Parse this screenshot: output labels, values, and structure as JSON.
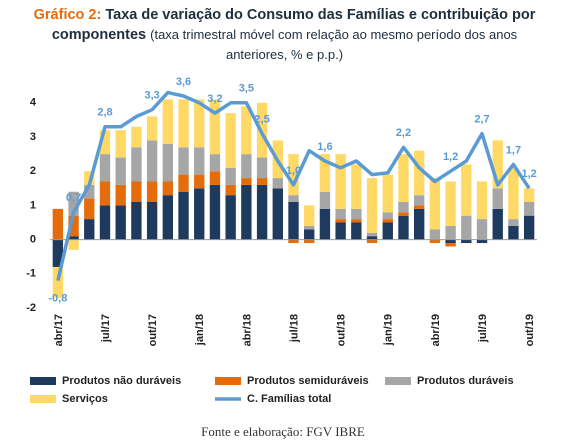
{
  "chart_data": {
    "type": "stacked_bar_line",
    "title_prefix": "Gráfico 2:",
    "title": "Taxa de variação do Consumo das Famílias e contribuição por componentes",
    "subtitle": "(taxa trimestral móvel com relação ao mesmo período dos anos anteriores, % e p.p.)",
    "source": "Fonte e elaboração: FGV IBRE",
    "categories": [
      "abr/17",
      null,
      null,
      "jul/17",
      null,
      null,
      "out/17",
      null,
      null,
      "jan/18",
      null,
      null,
      "abr/18",
      null,
      null,
      "jul/18",
      null,
      null,
      "out/18",
      null,
      null,
      "jan/19",
      null,
      null,
      "abr/19",
      null,
      null,
      "jul/19",
      null,
      null,
      "out/19"
    ],
    "ylim": [
      -2,
      4.2
    ],
    "yticks": [
      -2,
      -1,
      0,
      1,
      2,
      3,
      4
    ],
    "series": [
      {
        "name": "Produtos não duráveis",
        "color": "#1f3a5f",
        "values": [
          -0.8,
          0.1,
          0.6,
          1.0,
          1.0,
          1.1,
          1.1,
          1.3,
          1.4,
          1.5,
          1.6,
          1.3,
          1.6,
          1.6,
          1.5,
          1.1,
          0.3,
          0.9,
          0.5,
          0.5,
          0.1,
          0.5,
          0.7,
          0.9,
          0.0,
          -0.1,
          -0.1,
          -0.1,
          0.9,
          0.4,
          0.7
        ]
      },
      {
        "name": "Produtos semiduráveis",
        "color": "#e46c0a",
        "values": [
          0.9,
          0.6,
          0.6,
          0.7,
          0.6,
          0.6,
          0.6,
          0.4,
          0.5,
          0.4,
          0.4,
          0.3,
          0.2,
          0.2,
          0.0,
          -0.1,
          -0.1,
          0.0,
          0.1,
          0.1,
          -0.1,
          0.1,
          0.1,
          0.1,
          -0.1,
          -0.1,
          0.0,
          0.0,
          0.0,
          0.0,
          0.0
        ]
      },
      {
        "name": "Produtos duráveis",
        "color": "#a6a6a6",
        "values": [
          0.0,
          0.7,
          0.4,
          0.8,
          0.8,
          1.0,
          1.2,
          1.1,
          0.8,
          0.8,
          0.5,
          0.5,
          0.7,
          0.6,
          0.3,
          0.2,
          0.1,
          0.5,
          0.3,
          0.3,
          0.1,
          0.2,
          0.3,
          0.3,
          0.3,
          0.4,
          0.7,
          0.6,
          0.6,
          0.2,
          0.4
        ]
      },
      {
        "name": "Serviços",
        "color": "#ffd966",
        "values": [
          -0.9,
          -0.3,
          0.4,
          0.7,
          0.8,
          0.6,
          0.7,
          1.3,
          1.4,
          1.4,
          1.6,
          1.6,
          1.4,
          1.6,
          1.1,
          1.2,
          0.6,
          1.1,
          1.6,
          1.3,
          1.6,
          1.1,
          1.4,
          1.3,
          1.5,
          1.3,
          1.5,
          1.1,
          1.4,
          1.5,
          0.4
        ]
      },
      {
        "name": "C. Famílias total",
        "color": "#5b9bd5",
        "type": "line",
        "values": [
          -1.2,
          0.8,
          1.6,
          3.3,
          3.3,
          3.6,
          3.8,
          4.3,
          4.2,
          4.0,
          3.7,
          4.0,
          4.0,
          3.1,
          2.3,
          1.6,
          2.6,
          2.3,
          2.1,
          2.3,
          1.9,
          1.95,
          2.7,
          2.1,
          1.7,
          2.0,
          2.3,
          3.1,
          1.6,
          2.2,
          1.5
        ]
      }
    ],
    "annotations": [
      {
        "text": "-0,8",
        "at": 0
      },
      {
        "text": "0,7",
        "at": 1
      },
      {
        "text": "2,8",
        "at": 3
      },
      {
        "text": "3,3",
        "at": 6
      },
      {
        "text": "3,6",
        "at": 8
      },
      {
        "text": "3,2",
        "at": 10
      },
      {
        "text": "3,5",
        "at": 12
      },
      {
        "text": "2,5",
        "at": 13
      },
      {
        "text": "1,0",
        "at": 15
      },
      {
        "text": "1,6",
        "at": 17
      },
      {
        "text": "2,2",
        "at": 22
      },
      {
        "text": "1,2",
        "at": 25
      },
      {
        "text": "2,7",
        "at": 27
      },
      {
        "text": "1,7",
        "at": 29
      },
      {
        "text": "1,2",
        "at": 30
      }
    ]
  }
}
